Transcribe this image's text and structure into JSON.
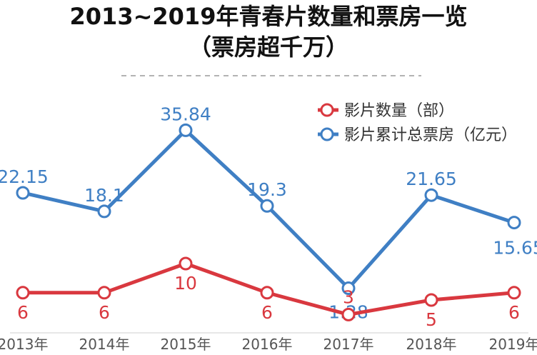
{
  "chart_data": {
    "type": "line",
    "title": "2013~2019年青春片数量和票房一览",
    "subtitle": "（票房超千万）",
    "categories": [
      "2013年",
      "2014年",
      "2015年",
      "2016年",
      "2017年",
      "2018年",
      "2019年"
    ],
    "series": [
      {
        "name": "影片数量（部）",
        "color": "#d9383f",
        "values": [
          6,
          6,
          10,
          6,
          3,
          5,
          6
        ],
        "labels": [
          "6",
          "6",
          "10",
          "6",
          "3",
          "5",
          "6"
        ]
      },
      {
        "name": "影片累计总票房（亿元）",
        "color": "#3f7fc4",
        "values": [
          22.15,
          18.1,
          35.84,
          19.3,
          1.28,
          21.65,
          15.65
        ],
        "labels": [
          "22.15",
          "18.1",
          "35.84",
          "19.3",
          "1.28",
          "21.65",
          "15.65"
        ]
      }
    ],
    "legend": {
      "position": "top-right"
    },
    "grid": false
  }
}
